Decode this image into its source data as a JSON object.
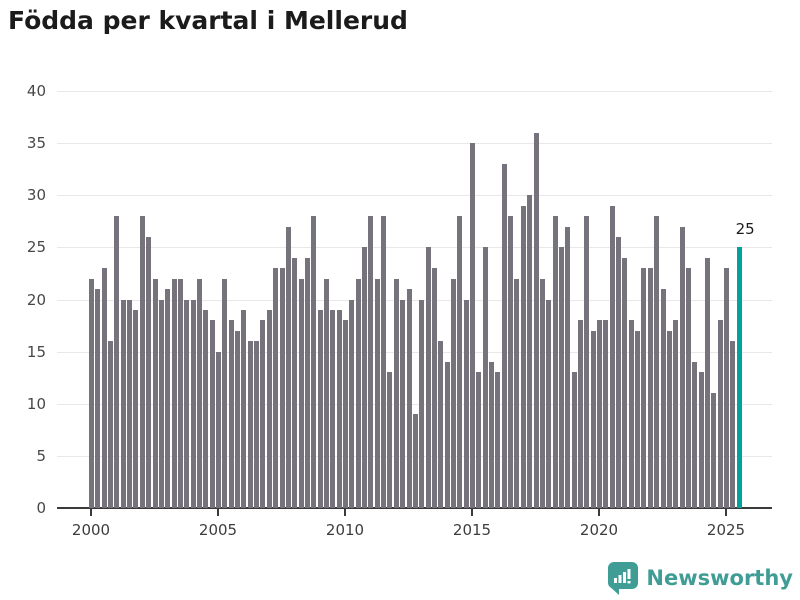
{
  "title": "Födda per kvartal i Mellerud",
  "colors": {
    "bar": "#76737c",
    "accent": "#00a29c",
    "grid": "#e8e8e8",
    "axis": "#3a3a3a",
    "logo_teal": "#3f9d96"
  },
  "chart_data": {
    "type": "bar",
    "title": "Födda per kvartal i Mellerud",
    "x_unit": "quarter",
    "x_start": "2000-Q1",
    "x_end": "2025-Q3",
    "x_tick_labels": [
      "2000",
      "2005",
      "2010",
      "2015",
      "2020",
      "2025"
    ],
    "y_ticks": [
      0,
      5,
      10,
      15,
      20,
      25,
      30,
      35,
      40
    ],
    "ylim": [
      0,
      40
    ],
    "grid": "horizontal",
    "legend": "none",
    "highlight_last_bar": true,
    "values": [
      22,
      21,
      23,
      16,
      28,
      20,
      20,
      19,
      28,
      26,
      22,
      20,
      21,
      22,
      22,
      20,
      20,
      22,
      19,
      18,
      15,
      22,
      18,
      17,
      19,
      16,
      16,
      18,
      19,
      23,
      23,
      27,
      24,
      22,
      24,
      28,
      19,
      22,
      19,
      19,
      18,
      20,
      22,
      25,
      28,
      22,
      28,
      13,
      22,
      20,
      21,
      9,
      20,
      25,
      23,
      16,
      14,
      22,
      28,
      20,
      35,
      13,
      25,
      14,
      13,
      33,
      28,
      22,
      29,
      30,
      36,
      22,
      20,
      28,
      25,
      27,
      13,
      18,
      28,
      17,
      18,
      18,
      29,
      26,
      24,
      18,
      17,
      23,
      23,
      28,
      21,
      17,
      18,
      27,
      23,
      14,
      13,
      24,
      11,
      18,
      23,
      16,
      25
    ]
  },
  "annotation": {
    "last_bar_label": "25"
  },
  "footer": {
    "brand": "Newsworthy"
  }
}
